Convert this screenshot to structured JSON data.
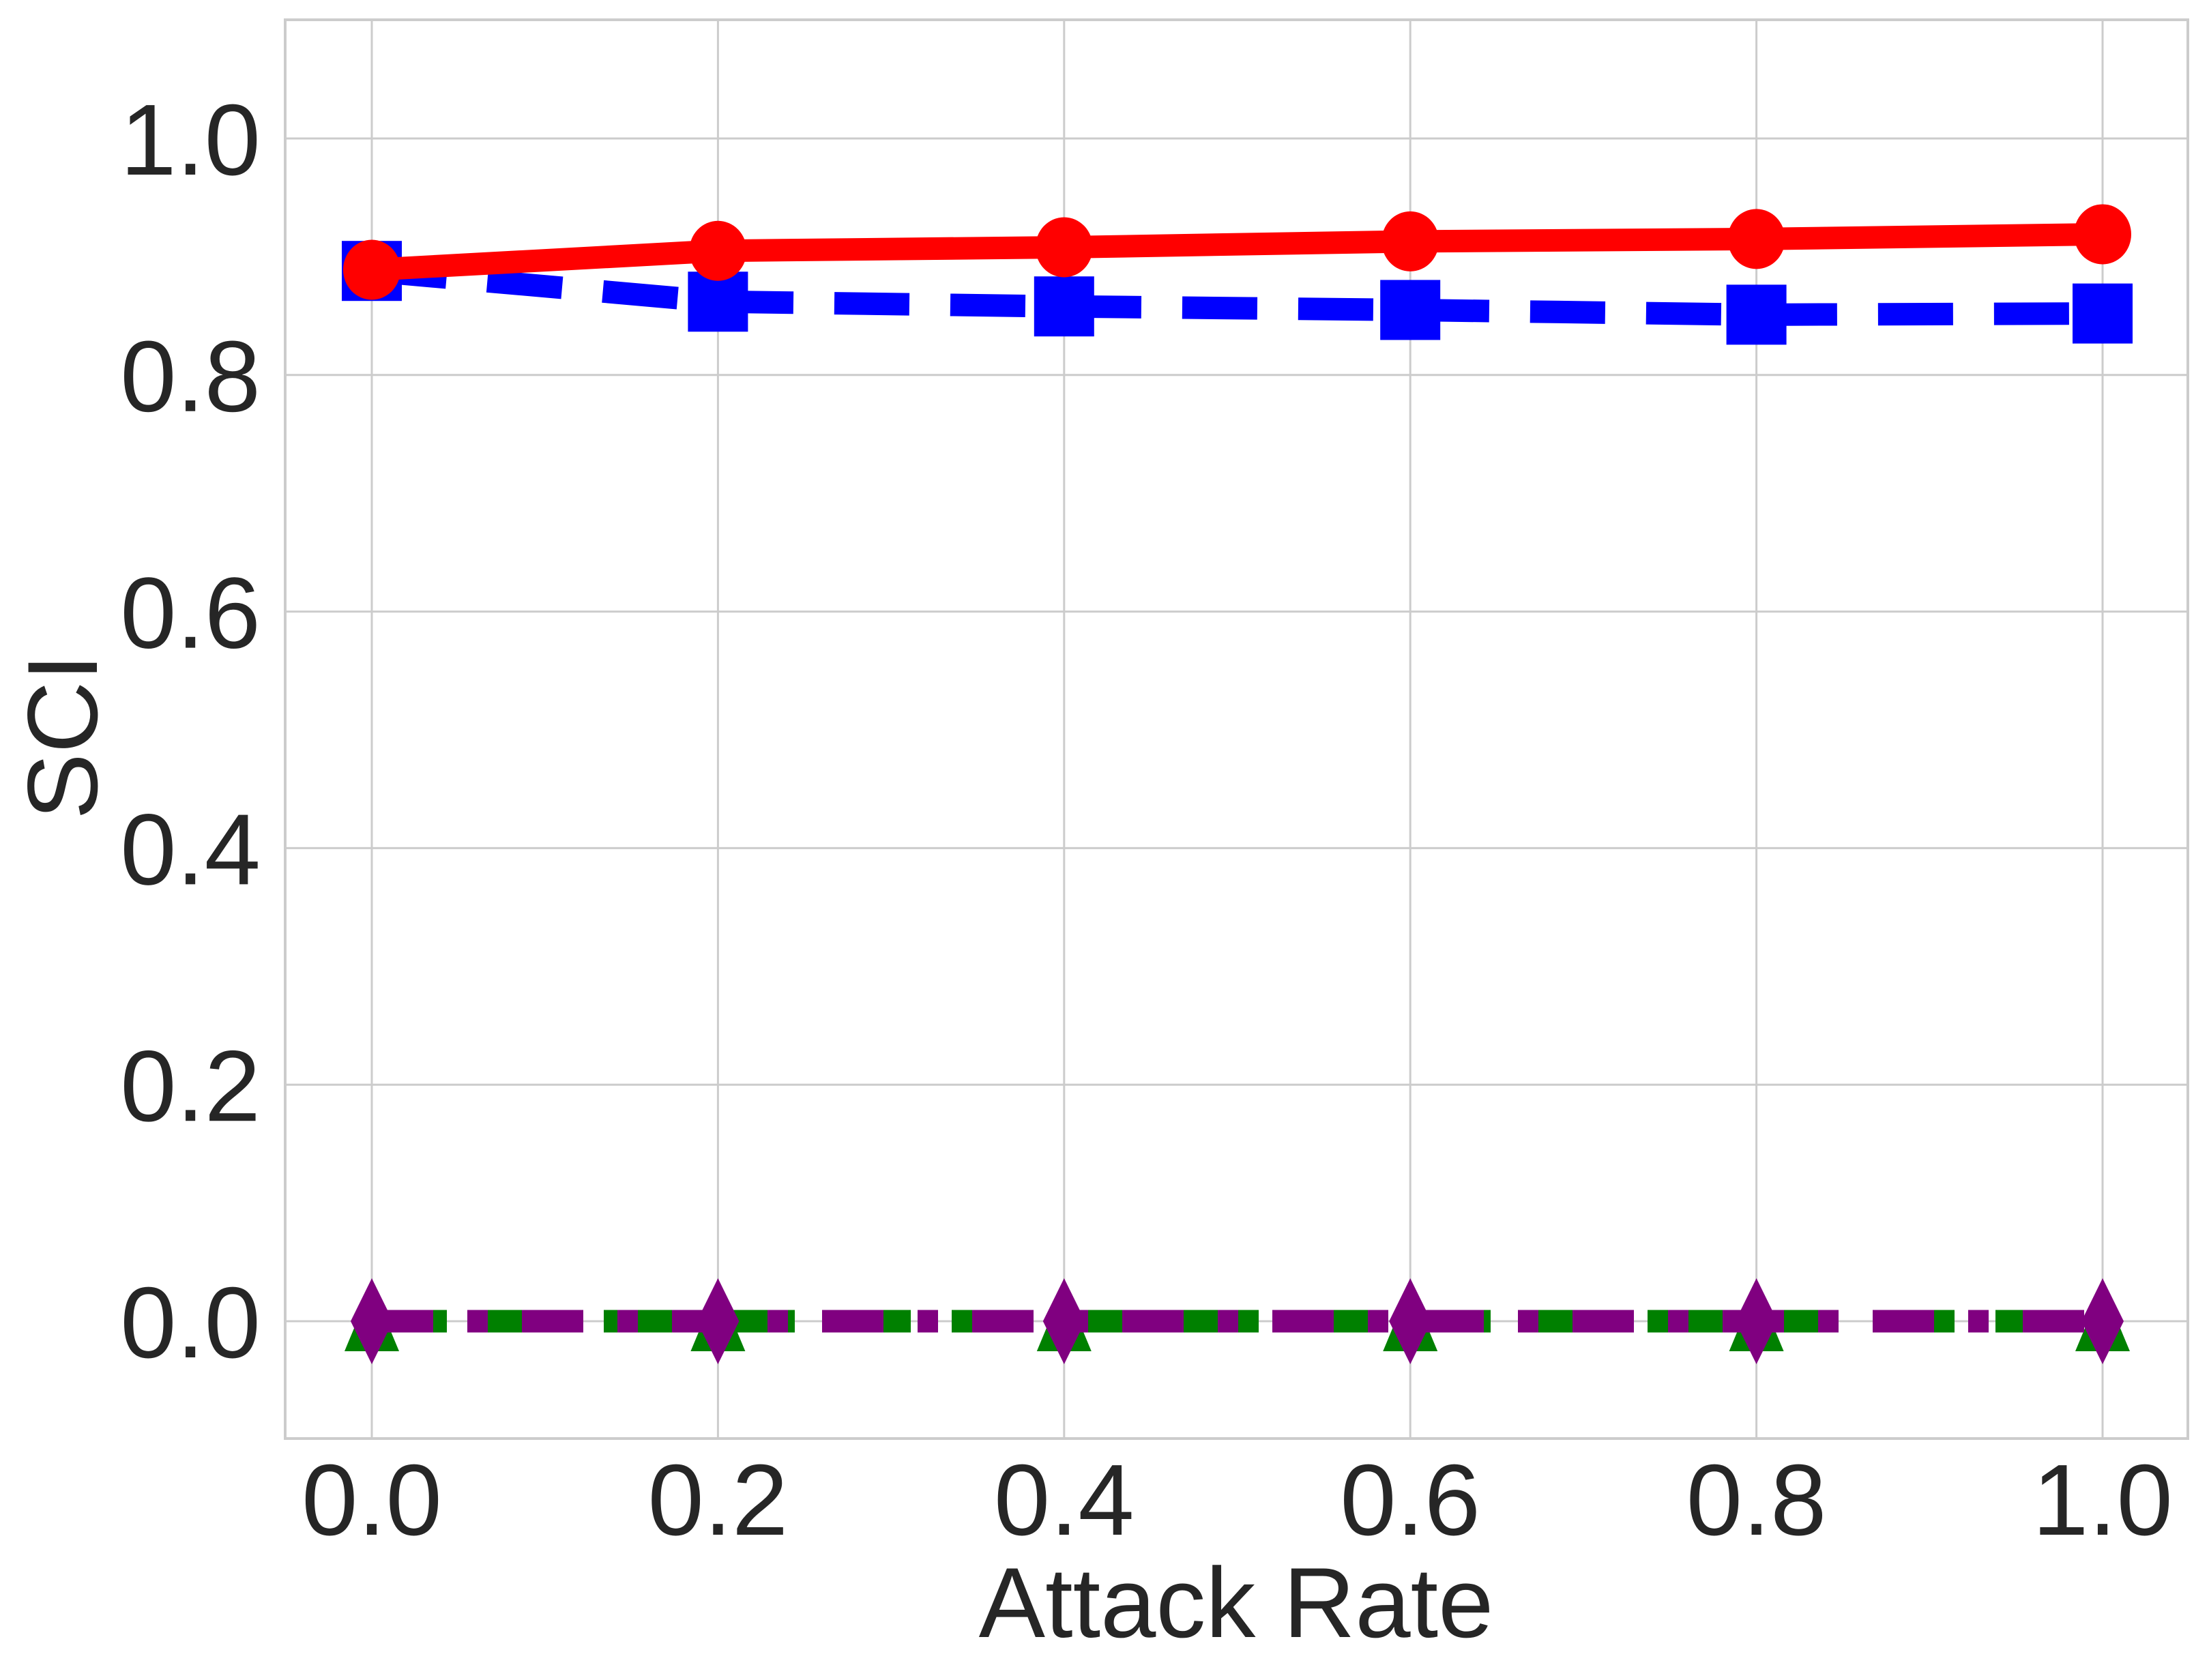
{
  "chart_data": {
    "type": "line",
    "title": "",
    "xlabel": "Attack Rate",
    "ylabel": "SCI",
    "x": [
      0.0,
      0.2,
      0.4,
      0.6,
      0.8,
      1.0
    ],
    "xlim": [
      -0.05,
      1.05
    ],
    "ylim": [
      -0.1,
      1.1
    ],
    "xticks": [
      "0.0",
      "0.2",
      "0.4",
      "0.6",
      "0.8",
      "1.0"
    ],
    "yticks": [
      "0.0",
      "0.2",
      "0.4",
      "0.6",
      "0.8",
      "1.0"
    ],
    "ytick_values": [
      0.0,
      0.2,
      0.4,
      0.6,
      0.8,
      1.0
    ],
    "grid": true,
    "legend": null,
    "series": [
      {
        "name": "red-circle-solid",
        "color": "#ff0000",
        "marker": "circle",
        "linestyle": "solid",
        "values": [
          0.889,
          0.905,
          0.908,
          0.913,
          0.915,
          0.919
        ]
      },
      {
        "name": "blue-square-dashed",
        "color": "#0000ff",
        "marker": "square",
        "linestyle": "dashed",
        "values": [
          0.888,
          0.862,
          0.858,
          0.855,
          0.851,
          0.852
        ]
      },
      {
        "name": "green-triangle-dashed",
        "color": "#008000",
        "marker": "triangle",
        "linestyle": "dashed",
        "values": [
          0.0,
          0.0,
          0.0,
          0.0,
          0.0,
          0.0
        ]
      },
      {
        "name": "purple-diamond-dashdot",
        "color": "#800080",
        "marker": "diamond",
        "linestyle": "dashdot",
        "values": [
          0.0,
          0.0,
          0.0,
          0.0,
          0.0,
          0.0
        ]
      }
    ]
  },
  "style": {
    "grid_color": "#cccccc",
    "text_color": "#262626",
    "background": "#ffffff"
  }
}
